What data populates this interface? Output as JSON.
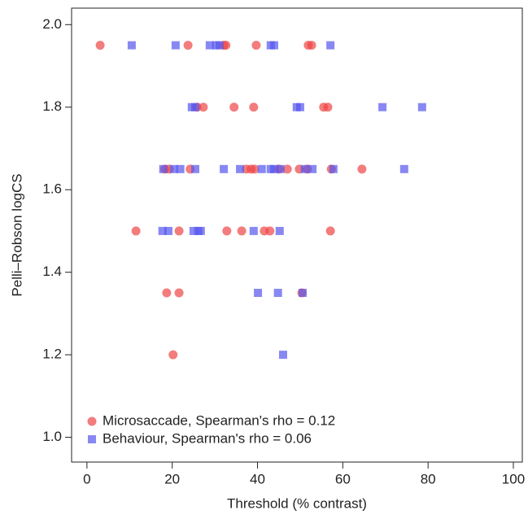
{
  "chart_data": {
    "type": "scatter",
    "xlabel": "Threshold (% contrast)",
    "ylabel": "Pelli–Robson logCS",
    "xlim": [
      -3.6,
      102.1
    ],
    "ylim": [
      0.94,
      2.04
    ],
    "xticks": [
      0,
      20,
      40,
      60,
      80,
      100
    ],
    "yticks": [
      {
        "value": 1,
        "label": "1.0"
      },
      1.2,
      1.4,
      1.6,
      1.8,
      {
        "value": 2,
        "label": "2.0"
      }
    ],
    "legend": "bottom-left",
    "series": [
      {
        "name": "Microsaccade, Spearman's rho = 0.12",
        "color": "#ee4444",
        "marker": "circle",
        "x": [
          3.1,
          23.7,
          32.1,
          32.6,
          39.7,
          51.9,
          52.7,
          25.8,
          27.3,
          34.5,
          39.1,
          55.5,
          56.5,
          18.3,
          19.3,
          24.2,
          37.4,
          38.5,
          39.3,
          45.0,
          47.0,
          49.8,
          51.7,
          57.3,
          64.5,
          11.5,
          21.6,
          32.8,
          36.3,
          41.6,
          42.9,
          57.1,
          18.7,
          21.6,
          50.4,
          20.2
        ],
        "values": [
          1.95,
          1.95,
          1.95,
          1.95,
          1.95,
          1.95,
          1.95,
          1.8,
          1.8,
          1.8,
          1.8,
          1.8,
          1.8,
          1.65,
          1.65,
          1.65,
          1.65,
          1.65,
          1.65,
          1.65,
          1.65,
          1.65,
          1.65,
          1.65,
          1.65,
          1.5,
          1.5,
          1.5,
          1.5,
          1.5,
          1.5,
          1.5,
          1.35,
          1.35,
          1.35,
          1.2
        ]
      },
      {
        "name": "Behaviour, Spearman's rho = 0.06",
        "color": "#5555ee",
        "marker": "square",
        "x": [
          10.5,
          20.8,
          28.8,
          30.3,
          31.1,
          43.1,
          43.9,
          57.1,
          24.6,
          25.4,
          49.2,
          50.0,
          69.3,
          78.6,
          17.9,
          20.4,
          21.9,
          25.4,
          32.1,
          35.9,
          41.0,
          43.1,
          43.9,
          45.4,
          51.1,
          52.9,
          57.8,
          74.4,
          17.7,
          19.1,
          25.0,
          26.1,
          26.7,
          39.1,
          45.2,
          40.1,
          44.8,
          50.6,
          46.0
        ],
        "values": [
          1.95,
          1.95,
          1.95,
          1.95,
          1.95,
          1.95,
          1.95,
          1.95,
          1.8,
          1.8,
          1.8,
          1.8,
          1.8,
          1.8,
          1.65,
          1.65,
          1.65,
          1.65,
          1.65,
          1.65,
          1.65,
          1.65,
          1.65,
          1.65,
          1.65,
          1.65,
          1.65,
          1.65,
          1.5,
          1.5,
          1.5,
          1.5,
          1.5,
          1.5,
          1.5,
          1.35,
          1.35,
          1.35,
          1.2
        ]
      }
    ]
  }
}
